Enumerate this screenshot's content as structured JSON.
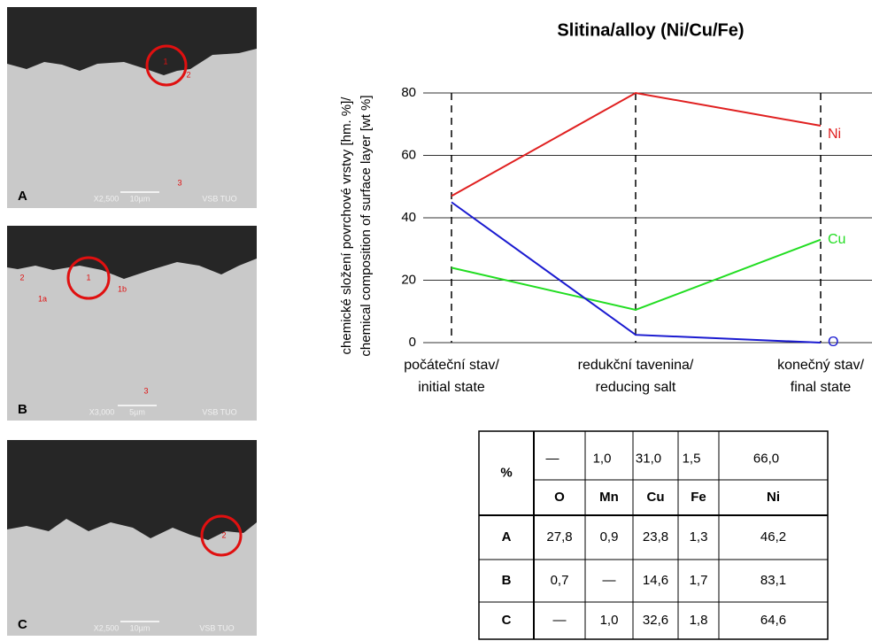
{
  "chart_data": {
    "type": "line",
    "title": "Slitina/alloy (Ni/Cu/Fe)",
    "y_label": [
      "chemické složení povrchové vrstvy [hm. %]/",
      "chemical composition of surface layer [wt %]"
    ],
    "categories": [
      [
        "počáteční stav/",
        "initial state"
      ],
      [
        "redukční tavenina/",
        "reducing salt"
      ],
      [
        "konečný stav/",
        "final state"
      ]
    ],
    "series": [
      {
        "name": "Ni",
        "color": "#e02020",
        "values": [
          47,
          80,
          69.5
        ]
      },
      {
        "name": "Cu",
        "color": "#22dd22",
        "values": [
          24,
          10.5,
          33
        ]
      },
      {
        "name": "O",
        "color": "#1a1ad0",
        "values": [
          45,
          2.5,
          0
        ]
      }
    ],
    "ylim": [
      0,
      80
    ],
    "yticks": [
      0,
      20,
      40,
      60,
      80
    ],
    "grid": true
  },
  "micrographs": [
    {
      "letter": "A",
      "magnification": "X2,500",
      "scale": "10µm",
      "source": "VSB TUO",
      "points": [
        "1",
        "2",
        "3"
      ]
    },
    {
      "letter": "B",
      "magnification": "X3,000",
      "scale": "5µm",
      "source": "VSB TUO",
      "points": [
        "1",
        "1a",
        "1b",
        "2",
        "3"
      ]
    },
    {
      "letter": "C",
      "magnification": "X2,500",
      "scale": "10µm",
      "source": "VSB TUO",
      "points": [
        "2"
      ]
    }
  ],
  "table": {
    "corner": "%",
    "header_values": [
      "—",
      "1,0",
      "31,0",
      "1,5",
      "66,0"
    ],
    "header_elements": [
      "O",
      "Mn",
      "Cu",
      "Fe",
      "Ni"
    ],
    "rows": [
      [
        "A",
        "27,8",
        "0,9",
        "23,8",
        "1,3",
        "46,2"
      ],
      [
        "B",
        "0,7",
        "—",
        "14,6",
        "1,7",
        "83,1"
      ],
      [
        "C",
        "—",
        "1,0",
        "32,6",
        "1,8",
        "64,6"
      ]
    ]
  }
}
